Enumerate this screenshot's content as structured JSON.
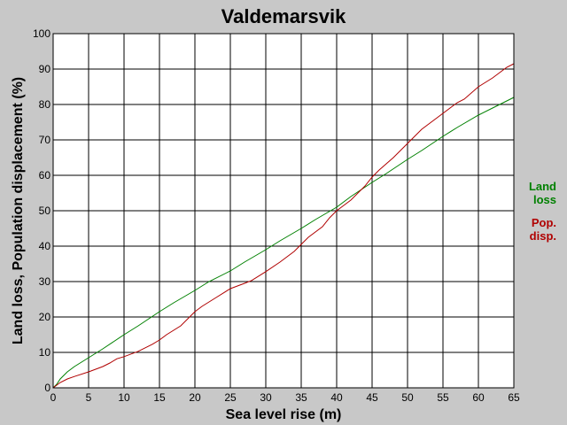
{
  "chart_data": {
    "type": "line",
    "title": "Valdemarsvik",
    "xlabel": "Sea level rise (m)",
    "ylabel": "Land loss, Population displacement (%)",
    "xlim": [
      0,
      65
    ],
    "ylim": [
      0,
      100
    ],
    "xticks": [
      0,
      5,
      10,
      15,
      20,
      25,
      30,
      35,
      40,
      45,
      50,
      55,
      60,
      65
    ],
    "yticks": [
      0,
      10,
      20,
      30,
      40,
      50,
      60,
      70,
      80,
      90,
      100
    ],
    "grid": true,
    "legend_position": "right",
    "series": [
      {
        "name": "Land loss",
        "legend_lines": [
          "Land",
          "loss"
        ],
        "color": "#008000",
        "x": [
          0,
          0.5,
          1,
          2,
          3,
          5,
          7,
          10,
          12,
          15,
          17,
          20,
          22,
          25,
          27,
          30,
          32,
          35,
          37,
          40,
          42,
          45,
          47,
          50,
          52,
          55,
          57,
          60,
          62,
          65
        ],
        "y": [
          0,
          1,
          2.5,
          4.5,
          6,
          8.5,
          11,
          15,
          17.5,
          21.5,
          24,
          27.5,
          30,
          33,
          35.5,
          39,
          41.5,
          45,
          47.5,
          51,
          54,
          58,
          60.5,
          64.5,
          67,
          71,
          73.5,
          77,
          79,
          82
        ]
      },
      {
        "name": "Pop. disp.",
        "legend_lines": [
          "Pop.",
          "disp."
        ],
        "color": "#b00000",
        "x": [
          0,
          1,
          2,
          3,
          5,
          7,
          8,
          9,
          10,
          12,
          14,
          15,
          16,
          18,
          20,
          21,
          23,
          25,
          27,
          28,
          30,
          32,
          34,
          35,
          36,
          38,
          39,
          40,
          41,
          42,
          43,
          44,
          45,
          46,
          48,
          50,
          52,
          55,
          57,
          58,
          60,
          62,
          63,
          64,
          65
        ],
        "y": [
          0,
          1.5,
          2.5,
          3.2,
          4.5,
          6,
          7,
          8.2,
          8.8,
          10.3,
          12.3,
          13.5,
          15,
          17.5,
          21.5,
          23,
          25.5,
          28,
          29.5,
          30.3,
          32.8,
          35.5,
          38.5,
          40.5,
          42.5,
          45.5,
          48,
          50,
          51.5,
          53,
          55,
          57,
          59.5,
          61.5,
          65,
          69,
          73,
          77.5,
          80.5,
          81.5,
          85,
          87.5,
          89,
          90.5,
          91.5
        ]
      }
    ]
  }
}
